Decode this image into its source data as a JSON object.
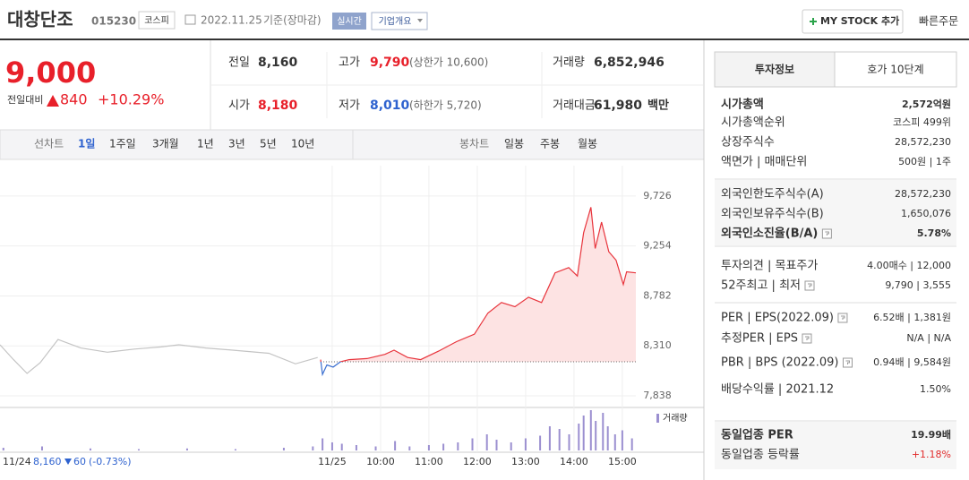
{
  "header": {
    "name": "대창단조",
    "code": "015230",
    "market": "코스피",
    "date": "2022.11.25",
    "basis": "기준(장마감)",
    "realtime": "실시간",
    "overview": "기업개요",
    "mystock": "MY STOCK 추가",
    "quick_order": "빠른주문"
  },
  "price": {
    "current": "9,000",
    "change_label": "전일대비",
    "change": "840",
    "change_pct": "+10.29%"
  },
  "summary": [
    {
      "label": "전일",
      "value": "8,160"
    },
    {
      "label": "고가",
      "value": "9,790",
      "note": "(상한가 10,600)"
    },
    {
      "label": "거래량",
      "value": "6,852,946"
    },
    {
      "label": "시가",
      "value": "8,180"
    },
    {
      "label": "저가",
      "value": "8,010",
      "note": "(하한가 5,720)"
    },
    {
      "label": "거래대금",
      "value": "61,980",
      "note": "백만"
    }
  ],
  "tabs": {
    "line_label": "선차트",
    "line": [
      "1일",
      "1주일",
      "3개월",
      "1년",
      "3년",
      "5년",
      "10년"
    ],
    "candle_label": "봉차트",
    "candle": [
      "일봉",
      "주봉",
      "월봉"
    ]
  },
  "chart_data": {
    "type": "line",
    "xlim": [
      2.13,
      15.28
    ],
    "ylim": [
      7728,
      10013
    ],
    "yticks": [
      {
        "value": 9726,
        "label": "9,726"
      },
      {
        "value": 9254,
        "label": "9,254"
      },
      {
        "value": 8782,
        "label": "8,782"
      },
      {
        "value": 8310,
        "label": "8,310"
      },
      {
        "value": 7838,
        "label": "7,838"
      }
    ],
    "xticks": [
      {
        "value": 9,
        "label": "11/25"
      },
      {
        "value": 10,
        "label": "10:00"
      },
      {
        "value": 11,
        "label": "11:00"
      },
      {
        "value": 12,
        "label": "12:00"
      },
      {
        "value": 13,
        "label": "13:00"
      },
      {
        "value": 14,
        "label": "14:00"
      },
      {
        "value": 15,
        "label": "15:00"
      }
    ],
    "baseline": 8160,
    "grid": true,
    "series": [
      {
        "color": "#c4c4c4",
        "x": [
          2.13,
          2.41,
          2.69,
          2.96,
          3.33,
          3.8,
          4.35,
          4.91,
          5.46,
          5.83,
          6.39,
          6.94,
          7.69,
          8.24,
          8.7
        ],
        "values": [
          8320,
          8180,
          8050,
          8150,
          8370,
          8290,
          8250,
          8280,
          8300,
          8320,
          8290,
          8270,
          8240,
          8140,
          8200
        ]
      },
      {
        "color": "#e8343c",
        "color_down": "#3a6fd0",
        "fill": "#fde3e3",
        "x": [
          8.76,
          8.8,
          8.89,
          9.02,
          9.17,
          9.35,
          9.72,
          10.09,
          10.28,
          10.56,
          10.83,
          11.2,
          11.57,
          11.94,
          12.22,
          12.5,
          12.78,
          13.06,
          13.33,
          13.61,
          13.89,
          14.07,
          14.2,
          14.35,
          14.44,
          14.57,
          14.72,
          14.87,
          15.02,
          15.09,
          15.28
        ],
        "values": [
          8180,
          8040,
          8130,
          8110,
          8160,
          8180,
          8190,
          8230,
          8270,
          8200,
          8180,
          8260,
          8350,
          8420,
          8620,
          8720,
          8680,
          8770,
          8720,
          9000,
          9050,
          8970,
          9380,
          9620,
          9230,
          9480,
          9200,
          9120,
          8890,
          9010,
          9000
        ]
      }
    ],
    "volume": {
      "name": "거래량",
      "color": "#9b8fd0",
      "x": [
        2.2,
        3.0,
        4.0,
        5.0,
        6.0,
        7.0,
        8.0,
        8.6,
        8.8,
        9.0,
        9.2,
        9.5,
        9.9,
        10.3,
        10.6,
        11.0,
        11.3,
        11.6,
        11.9,
        12.2,
        12.4,
        12.7,
        13.0,
        13.3,
        13.5,
        13.7,
        13.9,
        14.1,
        14.2,
        14.35,
        14.45,
        14.6,
        14.7,
        14.85,
        15.0,
        15.2
      ],
      "values": [
        20,
        30,
        15,
        10,
        15,
        10,
        20,
        30,
        90,
        60,
        50,
        40,
        30,
        70,
        30,
        40,
        50,
        60,
        90,
        120,
        80,
        60,
        90,
        110,
        180,
        160,
        120,
        200,
        260,
        300,
        220,
        280,
        180,
        120,
        150,
        90
      ]
    }
  },
  "footer": {
    "date": "11/24",
    "price": "8,160",
    "change": "60",
    "pct": "(-0.73%)"
  },
  "panel": {
    "tabs": [
      "투자정보",
      "호가 10단계"
    ],
    "sections": [
      [
        {
          "label": "시가총액",
          "value": "2,572억원",
          "bold": true
        },
        {
          "label": "시가총액순위",
          "value": "코스피 499위"
        },
        {
          "label": "상장주식수",
          "value": "28,572,230"
        },
        {
          "label": "액면가 | 매매단위",
          "value": "500원 | 1주"
        }
      ],
      [
        {
          "label": "외국인한도주식수(A)",
          "value": "28,572,230"
        },
        {
          "label": "외국인보유주식수(B)",
          "value": "1,650,076"
        },
        {
          "label": "외국인소진율(B/A)",
          "value": "5.78%",
          "bold": true,
          "help": true
        }
      ],
      [
        {
          "label": "투자의견 | 목표주가",
          "value": "4.00매수 | 12,000"
        },
        {
          "label": "52주최고 | 최저",
          "value": "9,790 | 3,555",
          "help": true
        }
      ],
      [
        {
          "label": "PER | EPS(2022.09)",
          "value": "6.52배 | 1,381원",
          "help": true
        },
        {
          "label": "추정PER | EPS",
          "value": "N/A | N/A",
          "help": true
        },
        {
          "label": "PBR | BPS (2022.09)",
          "value": "0.94배 | 9,584원",
          "help": true
        },
        {
          "label": "배당수익률 | 2021.12",
          "value": "1.50%"
        }
      ],
      [
        {
          "label": "동일업종 PER",
          "value": "19.99배",
          "bold": true
        },
        {
          "label": "동일업종 등락률",
          "value": "+1.18%",
          "color": "#e12b2b"
        }
      ]
    ]
  }
}
